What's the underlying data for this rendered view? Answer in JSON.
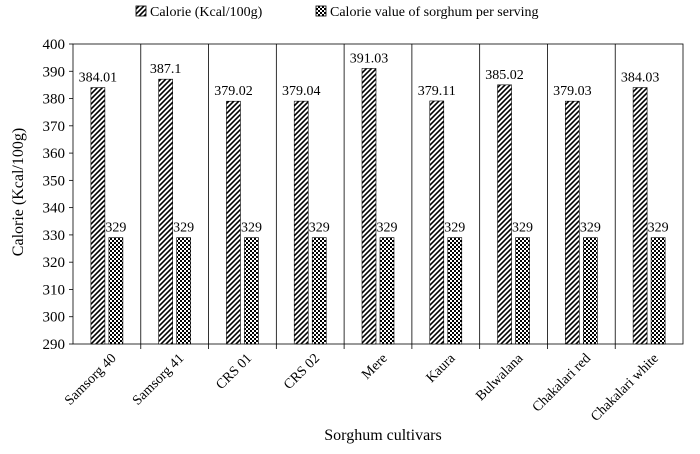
{
  "chart_data": {
    "type": "bar",
    "xlabel": "Sorghum  cultivars",
    "ylabel": "Calorie  (Kcal/100g)",
    "ylim": [
      290,
      400
    ],
    "ytick_step": 10,
    "grid": "vertical category separators",
    "legend_position": "top",
    "categories": [
      "Samsorg 40",
      "Samsorg 41",
      "CRS 01",
      "CRS 02",
      "Mere",
      "Kaura",
      "Bulwalana",
      "Chakalari red",
      "Chakalari white"
    ],
    "series": [
      {
        "name": "Calorie  (Kcal/100g)",
        "pattern": "diagonal-hatch",
        "values": [
          384.01,
          387.1,
          379.02,
          379.04,
          391.03,
          379.11,
          385.02,
          379.03,
          384.03
        ],
        "labels": [
          "384.01",
          "387.1",
          "379.02",
          "379.04",
          "391.03",
          "379.11",
          "385.02",
          "379.03",
          "384.03"
        ]
      },
      {
        "name": "Calorie value of sorghum per serving",
        "pattern": "checker",
        "values": [
          329,
          329,
          329,
          329,
          329,
          329,
          329,
          329,
          329
        ],
        "labels": [
          "329",
          "329",
          "329",
          "329",
          "329",
          "329",
          "329",
          "329",
          "329"
        ]
      }
    ]
  }
}
